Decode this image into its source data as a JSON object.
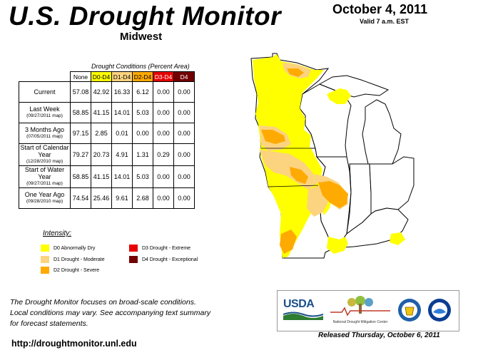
{
  "header": {
    "title": "U.S. Drought Monitor",
    "region": "Midwest",
    "date": "October 4, 2011",
    "valid": "Valid 7 a.m. EST"
  },
  "table": {
    "caption": "Drought Conditions (Percent Area)",
    "columns": [
      "None",
      "D0-D4",
      "D1-D4",
      "D2-D4",
      "D3-D4",
      "D4"
    ],
    "column_colors": [
      "#ffffff",
      "#ffff00",
      "#fcd37f",
      "#ffaa00",
      "#e60000",
      "#730000"
    ],
    "rows": [
      {
        "label": "Current",
        "sub": "",
        "values": [
          "57.08",
          "42.92",
          "16.33",
          "6.12",
          "0.00",
          "0.00"
        ]
      },
      {
        "label": "Last Week",
        "sub": "(09/27/2011 map)",
        "values": [
          "58.85",
          "41.15",
          "14.01",
          "5.03",
          "0.00",
          "0.00"
        ]
      },
      {
        "label": "3 Months Ago",
        "sub": "(07/05/2011 map)",
        "values": [
          "97.15",
          "2.85",
          "0.01",
          "0.00",
          "0.00",
          "0.00"
        ]
      },
      {
        "label": "Start of Calendar Year",
        "sub": "(12/28/2010 map)",
        "values": [
          "79.27",
          "20.73",
          "4.91",
          "1.31",
          "0.29",
          "0.00"
        ]
      },
      {
        "label": "Start of Water Year",
        "sub": "(09/27/2011 map)",
        "values": [
          "58.85",
          "41.15",
          "14.01",
          "5.03",
          "0.00",
          "0.00"
        ]
      },
      {
        "label": "One Year Ago",
        "sub": "(09/28/2010 map)",
        "values": [
          "74.54",
          "25.46",
          "9.61",
          "2.68",
          "0.00",
          "0.00"
        ]
      }
    ]
  },
  "legend": {
    "title": "Intensity:",
    "items": [
      {
        "label": "D0 Abnormally Dry",
        "color": "#ffff00"
      },
      {
        "label": "D1 Drought - Moderate",
        "color": "#fcd37f"
      },
      {
        "label": "D2 Drought - Severe",
        "color": "#ffaa00"
      },
      {
        "label": "D3 Drought - Extreme",
        "color": "#e60000"
      },
      {
        "label": "D4 Drought - Exceptional",
        "color": "#730000"
      }
    ]
  },
  "footer": {
    "note_line1": "The Drought Monitor focuses on broad-scale conditions.",
    "note_line2": "Local conditions may vary. See accompanying text summary",
    "note_line3": "for forecast statements.",
    "url": "http://droughtmonitor.unl.edu",
    "released": "Released Thursday, October 6, 2011"
  },
  "logos": {
    "usda": "USDA",
    "ndmc": "National Drought Mitigation Center"
  }
}
